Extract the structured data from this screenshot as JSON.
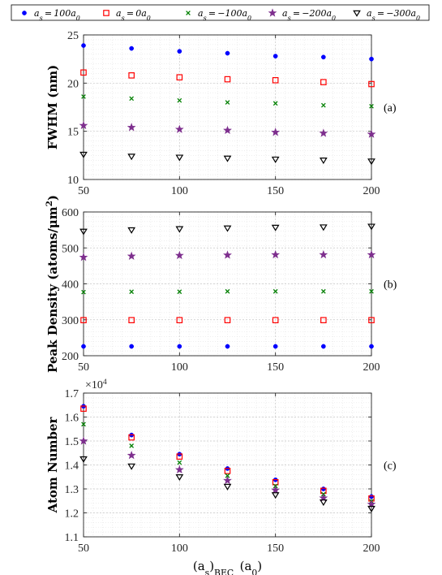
{
  "legend": [
    {
      "label": "a_s = 100a_0",
      "color": "#0000ff",
      "marker": "dot"
    },
    {
      "label": "a_s = 0a_0",
      "color": "#ff0000",
      "marker": "square"
    },
    {
      "label": "a_s = −100a_0",
      "color": "#008000",
      "marker": "x"
    },
    {
      "label": "a_s = −200a_0",
      "color": "#7e2f8e",
      "marker": "star"
    },
    {
      "label": "a_s = −300a_0",
      "color": "#000000",
      "marker": "triangle-down"
    }
  ],
  "chart_data": [
    {
      "type": "scatter",
      "panel_label": "(a)",
      "ylabel": "FWHM (nm)",
      "xlabel": "",
      "xlim": [
        50,
        200
      ],
      "ylim": [
        10,
        25
      ],
      "xticks": [
        50,
        100,
        150,
        200
      ],
      "yticks": [
        10,
        15,
        20,
        25
      ],
      "yticklabels": [
        "10",
        "15",
        "20",
        "25"
      ],
      "grid": true,
      "x": [
        50,
        75,
        100,
        125,
        150,
        175,
        200
      ],
      "series": [
        {
          "name": "a_s = 100a_0",
          "values": [
            23.9,
            23.6,
            23.3,
            23.1,
            22.8,
            22.7,
            22.5
          ]
        },
        {
          "name": "a_s = 0a_0",
          "values": [
            21.1,
            20.8,
            20.6,
            20.4,
            20.3,
            20.1,
            19.9
          ]
        },
        {
          "name": "a_s = −100a_0",
          "values": [
            18.6,
            18.4,
            18.2,
            18.0,
            17.9,
            17.7,
            17.6
          ]
        },
        {
          "name": "a_s = −200a_0",
          "values": [
            15.6,
            15.4,
            15.2,
            15.1,
            14.9,
            14.8,
            14.7
          ]
        },
        {
          "name": "a_s = −300a_0",
          "values": [
            12.6,
            12.4,
            12.3,
            12.2,
            12.1,
            12.0,
            11.9
          ]
        }
      ]
    },
    {
      "type": "scatter",
      "panel_label": "(b)",
      "ylabel": "Peak Density (atoms/μm²)",
      "xlabel": "",
      "xlim": [
        50,
        200
      ],
      "ylim": [
        200,
        600
      ],
      "xticks": [
        50,
        100,
        150,
        200
      ],
      "yticks": [
        200,
        300,
        400,
        500,
        600
      ],
      "yticklabels": [
        "200",
        "300",
        "400",
        "500",
        "600"
      ],
      "grid": true,
      "x": [
        50,
        75,
        100,
        125,
        150,
        175,
        200
      ],
      "series": [
        {
          "name": "a_s = 100a_0",
          "values": [
            226,
            226,
            226,
            226,
            226,
            226,
            226
          ]
        },
        {
          "name": "a_s = 0a_0",
          "values": [
            299,
            299,
            299,
            299,
            299,
            299,
            299
          ]
        },
        {
          "name": "a_s = −100a_0",
          "values": [
            377,
            378,
            378,
            379,
            379,
            379,
            379
          ]
        },
        {
          "name": "a_s = −200a_0",
          "values": [
            474,
            477,
            479,
            480,
            481,
            481,
            481
          ]
        },
        {
          "name": "a_s = −300a_0",
          "values": [
            546,
            550,
            553,
            555,
            557,
            558,
            560
          ]
        }
      ]
    },
    {
      "type": "scatter",
      "panel_label": "(c)",
      "ylabel": "Atom Number",
      "xlabel": "(a_s)_BEC (a_0)",
      "multiplier": "×10⁴",
      "xlim": [
        50,
        200
      ],
      "ylim": [
        1.1,
        1.7
      ],
      "xticks": [
        50,
        100,
        150,
        200
      ],
      "yticks": [
        1.1,
        1.2,
        1.3,
        1.4,
        1.5,
        1.6,
        1.7
      ],
      "yticklabels": [
        "1.1",
        "1.2",
        "1.3",
        "1.4",
        "1.5",
        "1.6",
        "1.7"
      ],
      "grid": true,
      "x": [
        50,
        75,
        100,
        125,
        150,
        175,
        200
      ],
      "series": [
        {
          "name": "a_s = 100a_0",
          "values": [
            1.645,
            1.525,
            1.445,
            1.385,
            1.338,
            1.3,
            1.268
          ]
        },
        {
          "name": "a_s = 0a_0",
          "values": [
            1.635,
            1.515,
            1.435,
            1.375,
            1.328,
            1.292,
            1.26
          ]
        },
        {
          "name": "a_s = −100a_0",
          "values": [
            1.57,
            1.48,
            1.41,
            1.355,
            1.312,
            1.278,
            1.248
          ]
        },
        {
          "name": "a_s = −200a_0",
          "values": [
            1.5,
            1.44,
            1.38,
            1.335,
            1.295,
            1.262,
            1.236
          ]
        },
        {
          "name": "a_s = −300a_0",
          "values": [
            1.425,
            1.395,
            1.35,
            1.31,
            1.275,
            1.245,
            1.218
          ]
        }
      ]
    }
  ]
}
